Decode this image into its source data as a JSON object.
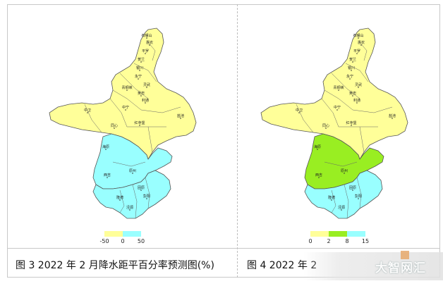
{
  "panel_left": {
    "caption": "图 3 2022 年 2 月降水距平百分率预测图(%)",
    "legend": {
      "colors": [
        "#ffff99",
        "#99ffff"
      ],
      "ticks": [
        "-50",
        "0",
        "50"
      ]
    },
    "fills": {
      "north": "#ffff99",
      "middle": "#99ffff",
      "south": "#99ffff"
    }
  },
  "panel_right": {
    "caption": "图 4 2022 年 2",
    "legend": {
      "colors": [
        "#ffff99",
        "#99ee22",
        "#99ffff"
      ],
      "ticks": [
        "0",
        "2",
        "8",
        "15"
      ]
    },
    "fills": {
      "north": "#ffff99",
      "middle": "#99ee22",
      "south": "#99ffff"
    }
  },
  "map_labels": [
    "石嘴山",
    "惠农",
    "平罗",
    "贺兰",
    "银川",
    "永宁",
    "灵武",
    "青铜峡",
    "吴忠",
    "利通",
    "中宁",
    "中卫",
    "盐池",
    "同心",
    "红寺堡",
    "海原",
    "西吉",
    "原州",
    "固原",
    "隆德",
    "泾源",
    "彭阳"
  ],
  "colors": {
    "border": "#555555",
    "yellow": "#ffff99",
    "cyan": "#99ffff",
    "green": "#99ee22"
  },
  "watermark": "大智网汇"
}
